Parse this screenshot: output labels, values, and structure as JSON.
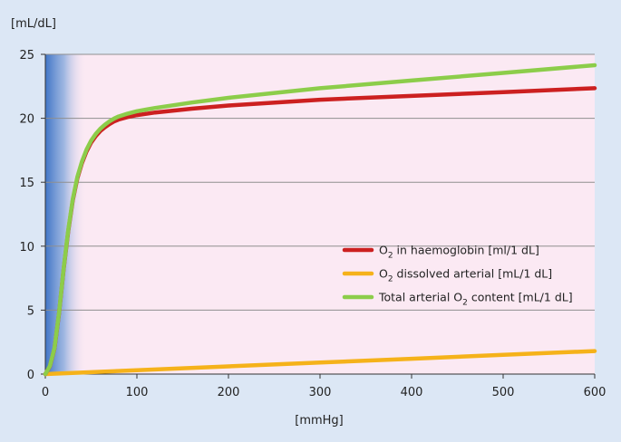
{
  "chart_data": {
    "type": "line",
    "xlabel": "[mmHg]",
    "ylabel": "[mL/dL]",
    "xlim": [
      0,
      600
    ],
    "ylim": [
      0,
      25
    ],
    "x_ticks": [
      "0",
      "100",
      "200",
      "300",
      "400",
      "500",
      "600"
    ],
    "y_ticks": [
      "0",
      "5",
      "10",
      "15",
      "20",
      "25"
    ],
    "grid": "horizontal",
    "legend_position": "bottom-right",
    "background": "#fbe9f3",
    "shaded_region": {
      "x_from": 0,
      "x_to": 45,
      "color": "#3f74c6"
    },
    "series": [
      {
        "name_prefix": "O",
        "name_sub": "2",
        "name_suffix": " in haemoglobin [ml/1 dL]",
        "color": "#cc2020",
        "x": [
          0,
          5,
          10,
          15,
          20,
          25,
          30,
          35,
          40,
          45,
          50,
          55,
          60,
          65,
          70,
          75,
          80,
          90,
          100,
          110,
          120,
          140,
          160,
          200,
          300,
          400,
          500,
          600
        ],
        "y": [
          0,
          0.6,
          2.0,
          4.8,
          8.2,
          11.2,
          13.6,
          15.3,
          16.5,
          17.4,
          18.1,
          18.6,
          19.0,
          19.3,
          19.55,
          19.75,
          19.9,
          20.1,
          20.25,
          20.35,
          20.45,
          20.6,
          20.75,
          21.0,
          21.45,
          21.75,
          22.05,
          22.35
        ]
      },
      {
        "name_prefix": "O",
        "name_sub": "2",
        "name_suffix": " dissolved arterial [mL/1 dL]",
        "color": "#f5b21a",
        "x": [
          0,
          100,
          200,
          300,
          400,
          500,
          600
        ],
        "y": [
          0,
          0.3,
          0.6,
          0.9,
          1.2,
          1.5,
          1.8
        ]
      },
      {
        "name_prefix": "Total arterial O",
        "name_sub": "2",
        "name_suffix": " content [mL/1 dL]",
        "color": "#8ccd4a",
        "x": [
          0,
          5,
          10,
          15,
          20,
          25,
          30,
          35,
          40,
          45,
          50,
          55,
          60,
          65,
          70,
          75,
          80,
          90,
          100,
          110,
          120,
          140,
          160,
          200,
          300,
          400,
          500,
          600
        ],
        "y": [
          0,
          0.62,
          2.03,
          4.85,
          8.26,
          11.28,
          13.69,
          15.41,
          16.62,
          17.54,
          18.25,
          18.77,
          19.18,
          19.5,
          19.76,
          19.98,
          20.14,
          20.37,
          20.55,
          20.68,
          20.81,
          21.02,
          21.23,
          21.6,
          22.35,
          22.95,
          23.55,
          24.15
        ]
      }
    ]
  }
}
